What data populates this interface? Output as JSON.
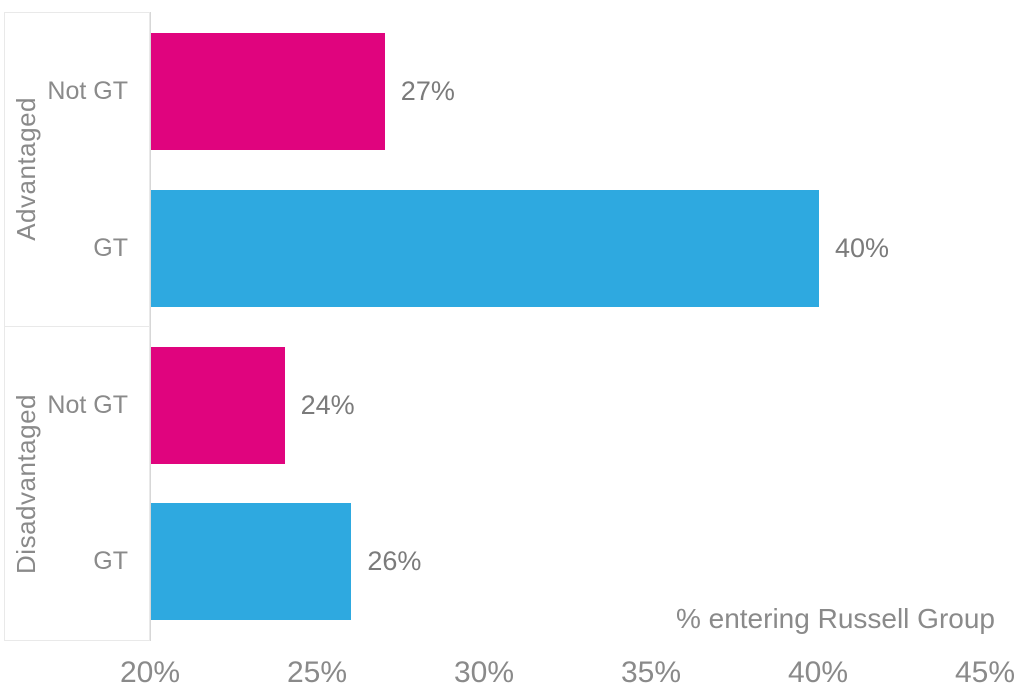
{
  "chart_data": {
    "type": "bar",
    "orientation": "horizontal",
    "xlabel": "% entering Russell Group",
    "x_axis": {
      "min": 20,
      "max": 45,
      "tick_values": [
        20,
        25,
        30,
        35,
        40,
        45
      ],
      "tick_labels": [
        "20%",
        "25%",
        "30%",
        "35%",
        "40%",
        "45%"
      ]
    },
    "grid": false,
    "legend": "none",
    "groups": [
      {
        "label": "Advantaged",
        "bars": [
          {
            "category": "Not GT",
            "value": 27,
            "value_label": "27%",
            "color": "pink"
          },
          {
            "category": "GT",
            "value": 40,
            "value_label": "40%",
            "color": "blue"
          }
        ]
      },
      {
        "label": "Disadvantaged",
        "bars": [
          {
            "category": "Not GT",
            "value": 24,
            "value_label": "24%",
            "color": "pink"
          },
          {
            "category": "GT",
            "value": 26,
            "value_label": "26%",
            "color": "blue"
          }
        ]
      }
    ],
    "colors": {
      "pink": "#e0047e",
      "blue": "#2ea9e0",
      "text": "#8a8a8a",
      "axis_line": "#d7d7d7",
      "box_border": "#e9e9e9"
    }
  }
}
